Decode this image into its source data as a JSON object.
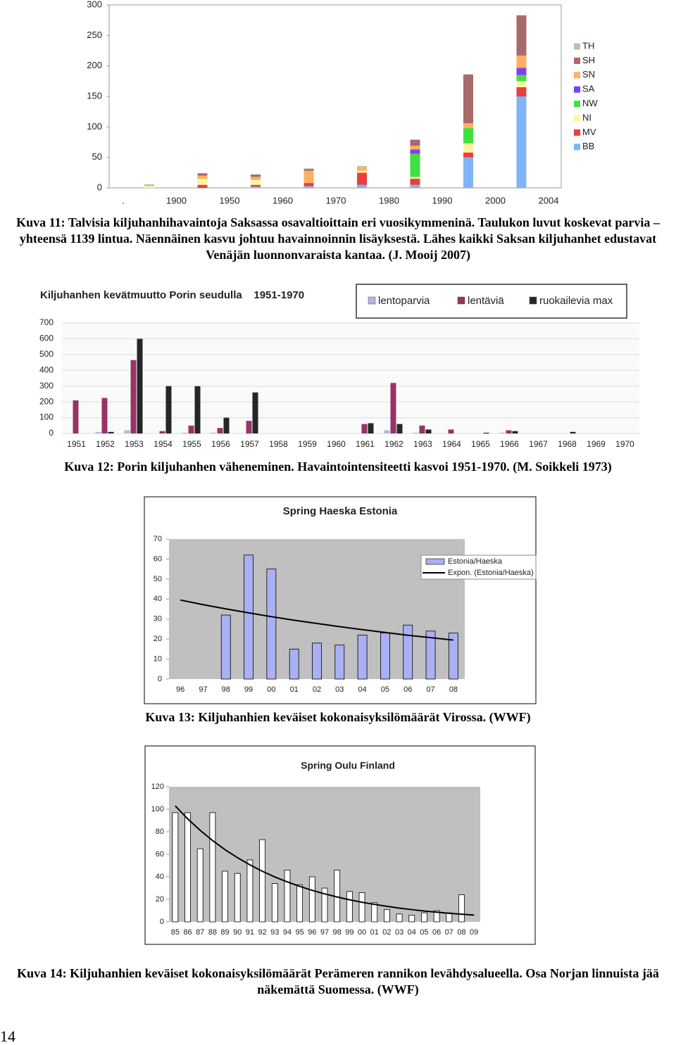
{
  "chart_data": [
    {
      "type": "stacked-bar",
      "caption": "Kuva 11: Talvisia kiljuhanhihavaintoja Saksassa osavaltioittain eri vuosikymmeninä. Taulukon luvut koskevat parvia – yhteensä 1139 lintua. Näennäinen kasvu johtuu havainnoinnin lisäyksestä. Lähes kaikki Saksan kiljuhanhet edustavat Venäjän luonnonvaraista kantaa. (J. Mooij 2007)",
      "categories": [
        ".",
        "1900",
        "1950",
        "1960",
        "1970",
        "1980",
        "1990",
        "2000",
        "2004"
      ],
      "series": [
        {
          "name": "BB",
          "color": "#7fb5f5",
          "values": [
            0,
            0,
            2,
            3,
            5,
            5,
            50,
            150,
            0
          ]
        },
        {
          "name": "MV",
          "color": "#e84040",
          "values": [
            0,
            5,
            3,
            5,
            20,
            10,
            8,
            15,
            0
          ]
        },
        {
          "name": "NI",
          "color": "#fff5a0",
          "values": [
            3,
            10,
            8,
            0,
            3,
            3,
            15,
            10,
            0
          ]
        },
        {
          "name": "NW",
          "color": "#40e040",
          "values": [
            0,
            0,
            0,
            0,
            0,
            38,
            25,
            10,
            0
          ]
        },
        {
          "name": "SA",
          "color": "#8040f0",
          "values": [
            0,
            0,
            0,
            0,
            0,
            7,
            0,
            12,
            0
          ]
        },
        {
          "name": "SN",
          "color": "#ffb060",
          "values": [
            0,
            5,
            5,
            20,
            5,
            6,
            8,
            20,
            0
          ]
        },
        {
          "name": "SH",
          "color": "#a86a6a",
          "values": [
            0,
            4,
            4,
            3,
            0,
            10,
            80,
            66,
            0
          ]
        },
        {
          "name": "TH",
          "color": "#b8c4a8",
          "values": [
            3,
            0,
            0,
            1,
            3,
            0,
            0,
            0,
            0
          ]
        }
      ],
      "ylim": [
        0,
        300
      ],
      "yticks": [
        0,
        50,
        100,
        150,
        200,
        250,
        300
      ],
      "grid": false,
      "legend": "right"
    },
    {
      "type": "grouped-bar",
      "title": "Kiljuhanhen kevätmuutto Porin seudulla    1951-1970",
      "caption": "Kuva 12: Porin kiljuhanhen väheneminen. Havaintointensiteetti kasvoi 1951-1970. (M. Soikkeli 1973)",
      "categories": [
        "1951",
        "1952",
        "1953",
        "1954",
        "1955",
        "1956",
        "1957",
        "1958",
        "1959",
        "1960",
        "1961",
        "1962",
        "1963",
        "1964",
        "1965",
        "1966",
        "1967",
        "1968",
        "1969",
        "1970"
      ],
      "series": [
        {
          "name": "lentoparvia",
          "color": "#b8b0f0",
          "values": [
            0,
            10,
            20,
            0,
            5,
            5,
            0,
            0,
            0,
            0,
            0,
            20,
            5,
            0,
            0,
            5,
            0,
            0,
            0,
            0
          ]
        },
        {
          "name": "lentäviä",
          "color": "#993366",
          "values": [
            210,
            225,
            465,
            15,
            50,
            35,
            80,
            0,
            0,
            0,
            60,
            320,
            50,
            25,
            0,
            20,
            0,
            0,
            0,
            0
          ]
        },
        {
          "name": "ruokailevia max",
          "color": "#262626",
          "values": [
            0,
            10,
            600,
            300,
            300,
            100,
            260,
            0,
            0,
            0,
            65,
            60,
            25,
            0,
            5,
            15,
            0,
            10,
            0,
            0
          ]
        }
      ],
      "ylim": [
        0,
        700
      ],
      "yticks": [
        0,
        100,
        200,
        300,
        400,
        500,
        600,
        700
      ],
      "grid": true,
      "legend": "top"
    },
    {
      "type": "bar",
      "title": "Spring Haeska Estonia",
      "caption": "Kuva 13: Kiljuhanhien keväiset kokonaisyksilömäärät Virossa. (WWF)",
      "categories": [
        "96",
        "97",
        "98",
        "99",
        "00",
        "01",
        "02",
        "03",
        "04",
        "05",
        "06",
        "07",
        "08"
      ],
      "series": [
        {
          "name": "Estonia/Haeska",
          "color": "#aab0f4",
          "values": [
            null,
            null,
            32,
            62,
            55,
            15,
            18,
            17,
            22,
            23,
            27,
            24,
            23
          ]
        },
        {
          "name": "Expon. (Estonia/Haeska)",
          "type": "line",
          "color": "#000000",
          "values": [
            39.5,
            37.2,
            35.1,
            33.1,
            31.2,
            29.4,
            27.8,
            26.2,
            24.7,
            23.3,
            21.9,
            20.7,
            19.5
          ]
        }
      ],
      "ylim": [
        0,
        70
      ],
      "yticks": [
        0,
        10,
        20,
        30,
        40,
        50,
        60,
        70
      ],
      "grid": false,
      "legend": "right"
    },
    {
      "type": "bar",
      "title": "Spring Oulu Finland",
      "caption": "Kuva 14: Kiljuhanhien keväiset kokonaisyksilömäärät Perämeren rannikon levähdysalueella. Osa Norjan linnuista jää näkemättä Suomessa. (WWF)",
      "categories": [
        "85",
        "86",
        "87",
        "88",
        "89",
        "90",
        "91",
        "92",
        "93",
        "94",
        "95",
        "96",
        "97",
        "98",
        "99",
        "00",
        "01",
        "02",
        "03",
        "04",
        "05",
        "06",
        "07",
        "08",
        "09"
      ],
      "series": [
        {
          "color": "#ffffff",
          "values": [
            97,
            97,
            65,
            97,
            45,
            43,
            55,
            73,
            34,
            46,
            33,
            40,
            30,
            46,
            27,
            26,
            17,
            11,
            7,
            6,
            8,
            10,
            8,
            24,
            null
          ]
        },
        {
          "type": "line",
          "color": "#000000",
          "values": [
            103,
            91.5,
            81.3,
            72.2,
            64.1,
            57.0,
            50.6,
            44.9,
            39.9,
            35.5,
            31.5,
            28.0,
            24.9,
            22.1,
            19.6,
            17.4,
            15.5,
            13.8,
            12.2,
            10.9,
            9.6,
            8.6,
            7.6,
            6.8,
            6.0
          ]
        }
      ],
      "ylim": [
        0,
        120
      ],
      "yticks": [
        0,
        20,
        40,
        60,
        80,
        100,
        120
      ],
      "grid": false
    }
  ],
  "page_number": "14"
}
